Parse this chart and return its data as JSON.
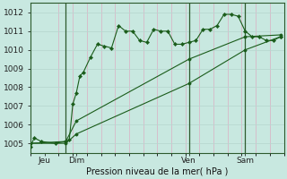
{
  "background_color": "#c8e8e0",
  "grid_color_v": "#d8b8c8",
  "grid_color_h": "#b8d8d0",
  "line_color": "#1a5c1a",
  "ylim": [
    1004.5,
    1012.5
  ],
  "yticks": [
    1005,
    1006,
    1007,
    1008,
    1009,
    1010,
    1011,
    1012
  ],
  "xlabel": "Pression niveau de la mer( hPa )",
  "xlim": [
    0,
    72
  ],
  "day_positions": [
    4,
    13,
    45,
    61
  ],
  "day_labels": [
    "Jeu",
    "Dim",
    "Ven",
    "Sam"
  ],
  "vline_positions": [
    10,
    45,
    61
  ],
  "line1_x": [
    0,
    1,
    3,
    7,
    10,
    11,
    12,
    13,
    14,
    15,
    17,
    19,
    21,
    23,
    25,
    27,
    29,
    31,
    33,
    35,
    37,
    39,
    41,
    43,
    45,
    47,
    49,
    51,
    53,
    55,
    57,
    59,
    61,
    63,
    65,
    67,
    69,
    71
  ],
  "line1_y": [
    1004.8,
    1005.3,
    1005.1,
    1005.0,
    1005.1,
    1005.2,
    1007.1,
    1007.7,
    1008.6,
    1008.8,
    1009.6,
    1010.3,
    1010.2,
    1010.1,
    1011.3,
    1011.0,
    1011.0,
    1010.5,
    1010.4,
    1011.1,
    1011.0,
    1011.0,
    1010.3,
    1010.3,
    1010.4,
    1010.5,
    1011.1,
    1011.1,
    1011.3,
    1011.9,
    1011.9,
    1011.8,
    1011.0,
    1010.7,
    1010.7,
    1010.5,
    1010.5,
    1010.7
  ],
  "line2_x": [
    0,
    10,
    13,
    45,
    61,
    71
  ],
  "line2_y": [
    1005.0,
    1005.0,
    1005.5,
    1008.2,
    1010.0,
    1010.7
  ],
  "line3_x": [
    0,
    10,
    13,
    45,
    61,
    71
  ],
  "line3_y": [
    1005.0,
    1005.1,
    1006.2,
    1009.5,
    1010.7,
    1010.8
  ]
}
